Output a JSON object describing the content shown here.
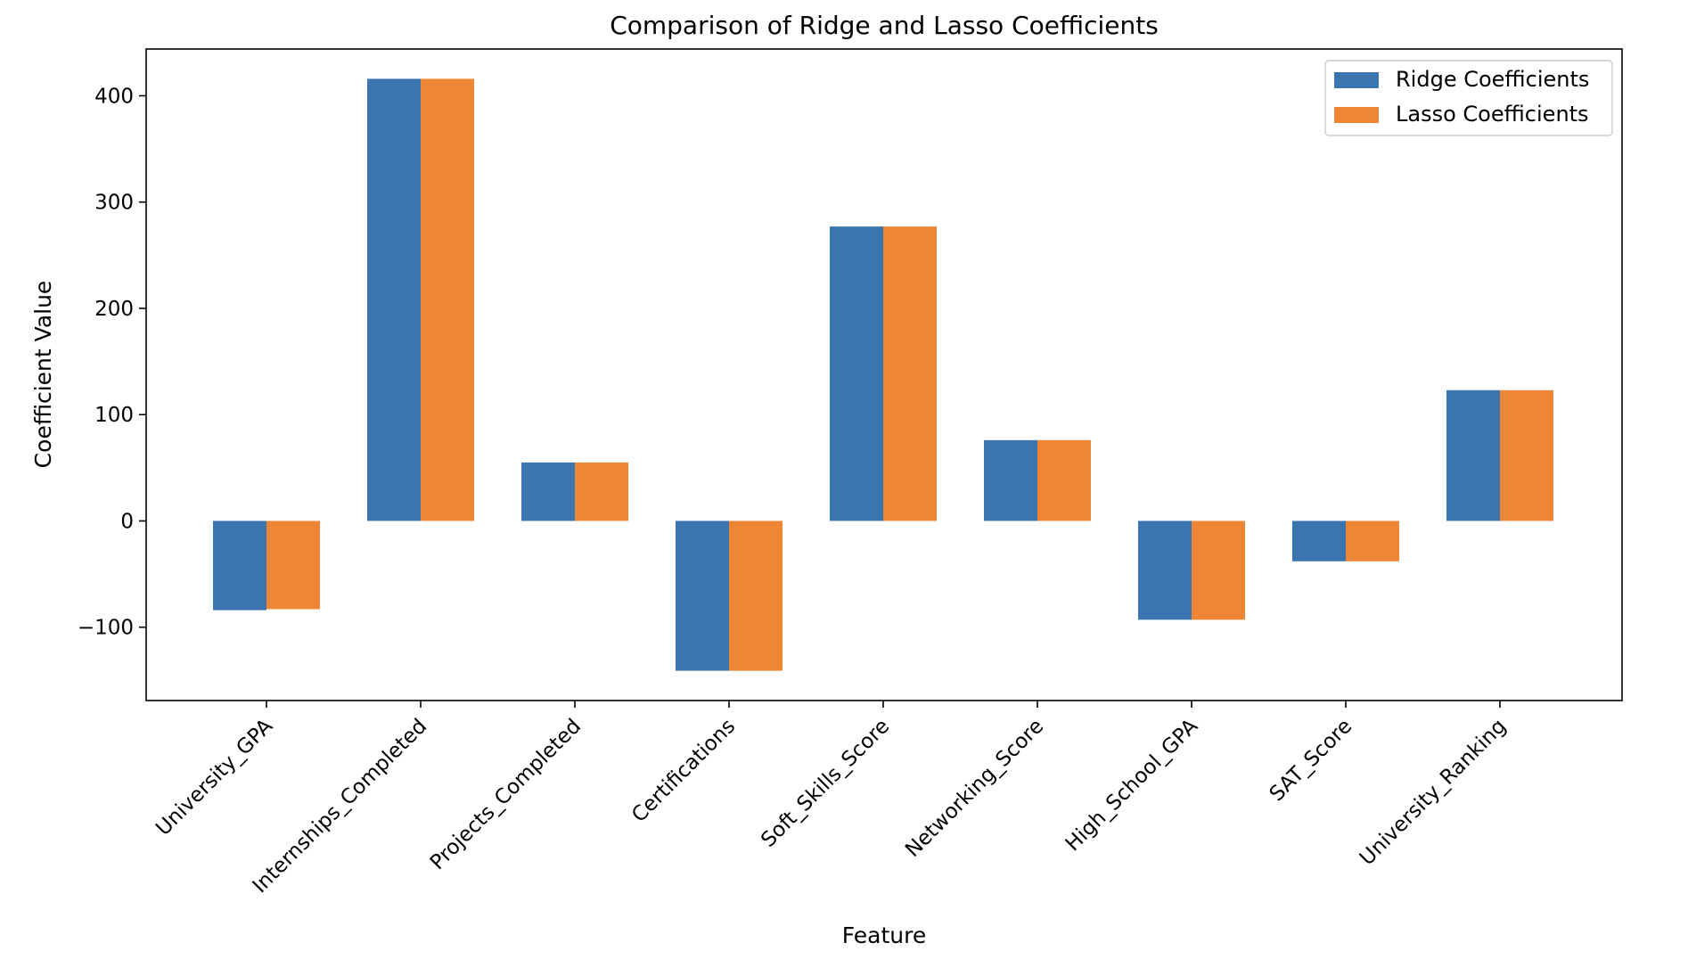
{
  "chart_data": {
    "type": "bar",
    "title": "Comparison of Ridge and Lasso Coefficients",
    "xlabel": "Feature",
    "ylabel": "Coefficient Value",
    "categories": [
      "University_GPA",
      "Internships_Completed",
      "Projects_Completed",
      "Certifications",
      "Soft_Skills_Score",
      "Networking_Score",
      "High_School_GPA",
      "SAT_Score",
      "University_Ranking"
    ],
    "series": [
      {
        "name": "Ridge Coefficients",
        "color": "#3b75af",
        "values": [
          -84,
          416,
          55,
          -141,
          277,
          76,
          -93,
          -38,
          123
        ]
      },
      {
        "name": "Lasso Coefficients",
        "color": "#ef8636",
        "values": [
          -83,
          416,
          55,
          -141,
          277,
          76,
          -93,
          -38,
          123
        ]
      }
    ],
    "ylim": [
      -169,
      444
    ],
    "yticks": [
      -100,
      0,
      100,
      200,
      300,
      400
    ],
    "ytick_labels": [
      "−100",
      "0",
      "100",
      "200",
      "300",
      "400"
    ],
    "grid": false,
    "legend_position": "top-right"
  }
}
